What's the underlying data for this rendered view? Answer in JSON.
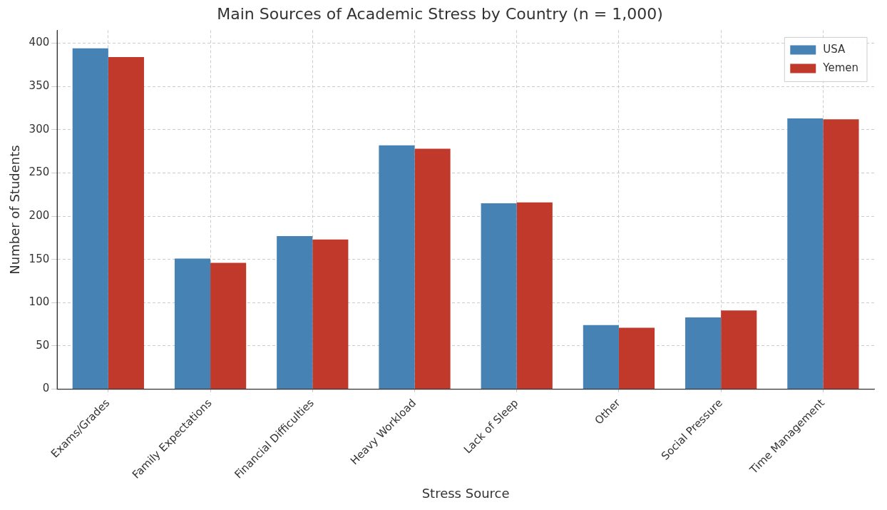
{
  "chart_data": {
    "type": "bar",
    "title": "Main Sources of Academic Stress by Country (n = 1,000)",
    "xlabel": "Stress Source",
    "ylabel": "Number of Students",
    "categories": [
      "Exams/Grades",
      "Family Expectations",
      "Financial Difficulties",
      "Heavy Workload",
      "Lack of Sleep",
      "Other",
      "Social Pressure",
      "Time Management"
    ],
    "series": [
      {
        "name": "USA",
        "color": "#4682b4",
        "values": [
          394,
          151,
          177,
          282,
          215,
          74,
          83,
          313
        ]
      },
      {
        "name": "Yemen",
        "color": "#c0392b",
        "values": [
          384,
          146,
          173,
          278,
          216,
          71,
          91,
          312
        ]
      }
    ],
    "ylim": [
      0,
      415
    ],
    "yticks": [
      0,
      50,
      100,
      150,
      200,
      250,
      300,
      350,
      400
    ],
    "grid": true,
    "legend": "top right"
  }
}
